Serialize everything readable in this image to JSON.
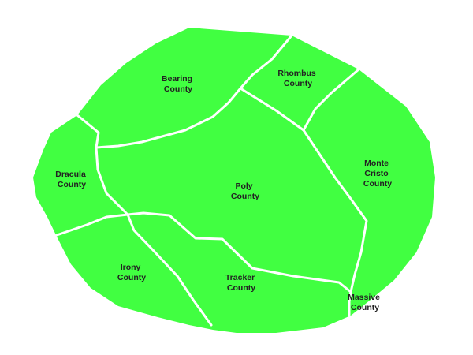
{
  "map": {
    "land_color": "#41ff41",
    "border_color": "#ffffff",
    "label_color": "#222222",
    "counties": [
      {
        "id": "bearing",
        "lines": [
          "Bearing",
          "County"
        ]
      },
      {
        "id": "rhombus",
        "lines": [
          "Rhombus",
          "County"
        ]
      },
      {
        "id": "dracula",
        "lines": [
          "Dracula",
          "County"
        ]
      },
      {
        "id": "poly",
        "lines": [
          "Poly",
          "County"
        ]
      },
      {
        "id": "monte-cristo",
        "lines": [
          "Monte",
          "Cristo",
          "County"
        ]
      },
      {
        "id": "irony",
        "lines": [
          "Irony",
          "County"
        ]
      },
      {
        "id": "tracker",
        "lines": [
          "Tracker",
          "County"
        ]
      },
      {
        "id": "massive",
        "lines": [
          "Massive",
          "County"
        ]
      }
    ]
  }
}
